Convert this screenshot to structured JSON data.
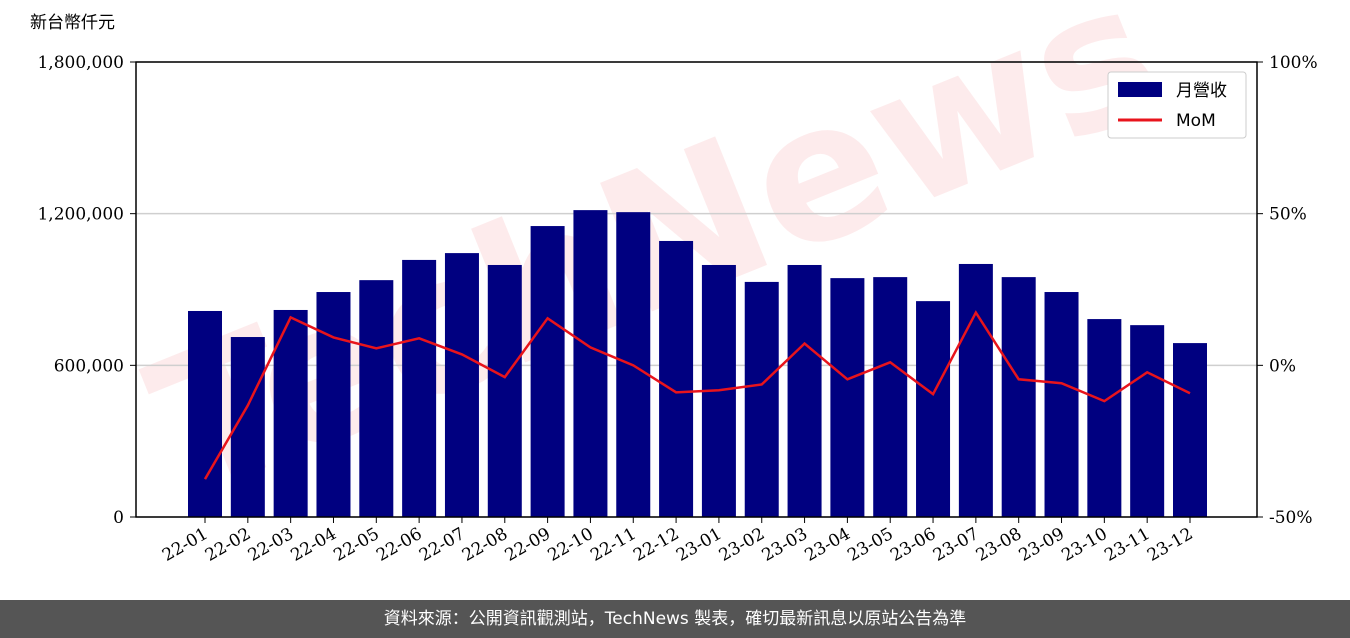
{
  "chart_data": {
    "type": "bar",
    "y_label": "新台幣仟元",
    "watermark": "TechNews",
    "categories": [
      "22-01",
      "22-02",
      "22-03",
      "22-04",
      "22-05",
      "22-06",
      "22-07",
      "22-08",
      "22-09",
      "22-10",
      "22-11",
      "22-12",
      "23-01",
      "23-02",
      "23-03",
      "23-04",
      "23-05",
      "23-06",
      "23-07",
      "23-08",
      "23-09",
      "23-10",
      "23-11",
      "23-12"
    ],
    "series": [
      {
        "name": "月營收",
        "type": "bar",
        "color": "#000080",
        "values": [
          815000,
          712000,
          819000,
          890000,
          937000,
          1017000,
          1044000,
          997000,
          1151000,
          1214000,
          1206000,
          1092000,
          997000,
          930000,
          997000,
          945000,
          949000,
          854000,
          1001000,
          949000,
          890000,
          783000,
          759000,
          688000
        ]
      },
      {
        "name": "MoM",
        "type": "line",
        "color": "#e8141c",
        "axis": "y2",
        "values": [
          -37.5,
          -13.2,
          15.8,
          9.2,
          5.6,
          8.9,
          3.6,
          -3.9,
          15.5,
          5.9,
          0,
          -8.9,
          -8.2,
          -6.3,
          7.2,
          -4.6,
          1.0,
          -9.5,
          17.4,
          -4.6,
          -5.9,
          -11.8,
          -2.3,
          -9.2
        ]
      }
    ],
    "ylim": [
      0,
      1800000
    ],
    "yticks": [
      {
        "value": 0,
        "label": "0"
      },
      {
        "value": 600000,
        "label": "600,000"
      },
      {
        "value": 1200000,
        "label": "1,200,000"
      },
      {
        "value": 1800000,
        "label": "1,800,000"
      }
    ],
    "y2lim": [
      -50,
      100
    ],
    "y2ticks": [
      {
        "value": -50,
        "label": "-50%"
      },
      {
        "value": 0,
        "label": "0%"
      },
      {
        "value": 50,
        "label": "50%"
      },
      {
        "value": 100,
        "label": "100%"
      }
    ],
    "grid": true,
    "legend": "upper right"
  },
  "footer": "資料來源：公開資訊觀測站，TechNews 製表，確切最新訊息以原站公告為準"
}
